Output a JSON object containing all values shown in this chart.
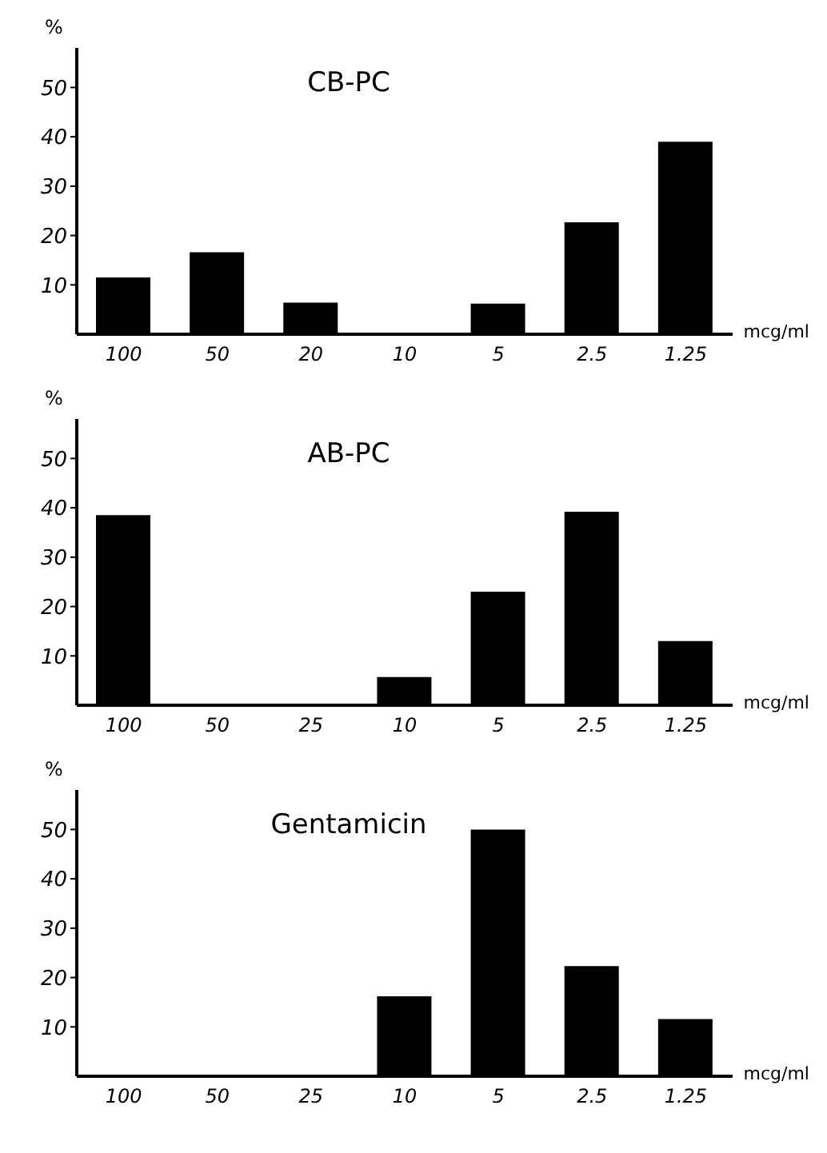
{
  "chart_data": [
    {
      "type": "bar",
      "title": "CB-PC",
      "ylabel": "%",
      "xlabel": "mcg/ml",
      "categories": [
        "100",
        "50",
        "20",
        "10",
        "5",
        "2.5",
        "1.25"
      ],
      "values": [
        11.5,
        16.6,
        6.4,
        0,
        6.2,
        22.7,
        39
      ],
      "color": "#000000",
      "ylim": [
        0,
        58
      ],
      "yticks": [
        10,
        20,
        30,
        40,
        50
      ],
      "grid": false,
      "legend": false
    },
    {
      "type": "bar",
      "title": "AB-PC",
      "ylabel": "%",
      "xlabel": "mcg/ml",
      "categories": [
        "100",
        "50",
        "25",
        "10",
        "5",
        "2.5",
        "1.25"
      ],
      "values": [
        38.5,
        0,
        0,
        5.7,
        23,
        39.2,
        13
      ],
      "color": "#000000",
      "ylim": [
        0,
        58
      ],
      "yticks": [
        10,
        20,
        30,
        40,
        50
      ],
      "grid": false,
      "legend": false
    },
    {
      "type": "bar",
      "title": "Gentamicin",
      "ylabel": "%",
      "xlabel": "mcg/ml",
      "categories": [
        "100",
        "50",
        "25",
        "10",
        "5",
        "2.5",
        "1.25"
      ],
      "values": [
        0,
        0,
        0,
        16.2,
        50,
        22.3,
        11.6
      ],
      "color": "#000000",
      "ylim": [
        0,
        58
      ],
      "yticks": [
        10,
        20,
        30,
        40,
        50
      ],
      "grid": false,
      "legend": false
    }
  ]
}
